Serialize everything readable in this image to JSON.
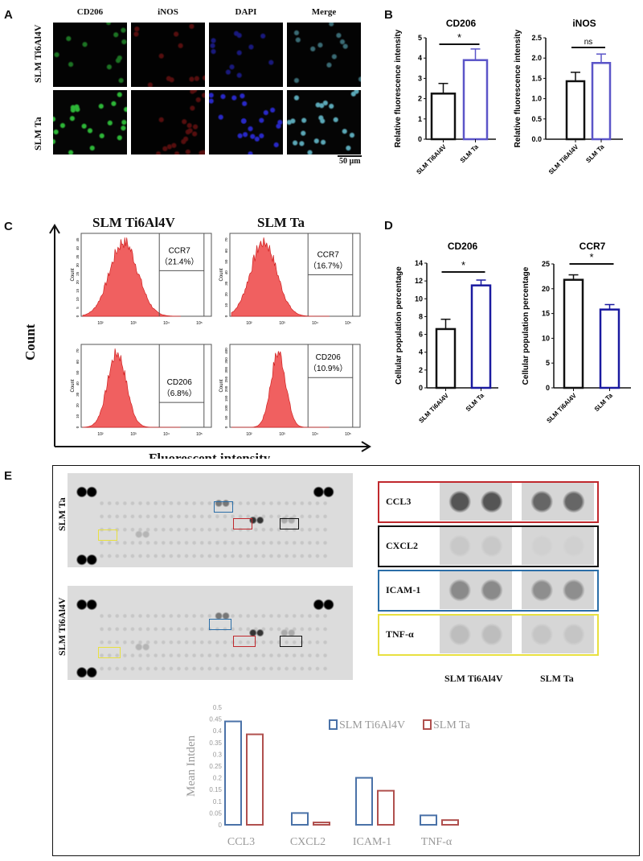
{
  "panel_labels": {
    "a": "A",
    "b": "B",
    "c": "C",
    "d": "D",
    "e": "E"
  },
  "panelA": {
    "columns": [
      "CD206",
      "iNOS",
      "DAPI",
      "Merge"
    ],
    "rows": [
      "SLM Ti6Al4V",
      "SLM Ta"
    ],
    "scale_bar": "50 µm",
    "channel_colors": {
      "CD206": "#2fbf3a",
      "iNOS": "#c02020",
      "DAPI": "#2a2ad0",
      "Merge": "#5fb0c0"
    }
  },
  "chart_data": [
    {
      "id": "B-CD206",
      "type": "bar",
      "title": "CD206",
      "ylabel": "Relative fluorescence intensity",
      "categories": [
        "SLM Ti6Al4V",
        "SLM Ta"
      ],
      "values": [
        2.25,
        3.9
      ],
      "errors": [
        0.5,
        0.55
      ],
      "ylim": [
        0,
        5
      ],
      "yticks": [
        "0",
        "1",
        "2",
        "3",
        "4",
        "5"
      ],
      "significance": "*",
      "colors": [
        "#111111",
        "#5b55c8"
      ]
    },
    {
      "id": "B-iNOS",
      "type": "bar",
      "title": "iNOS",
      "ylabel": "Relative fluorescence intensity",
      "categories": [
        "SLM Ti6Al4V",
        "SLM Ta"
      ],
      "values": [
        1.43,
        1.88
      ],
      "errors": [
        0.22,
        0.22
      ],
      "ylim": [
        0,
        2.5
      ],
      "yticks": [
        "0.0",
        "0.5",
        "1.0",
        "1.5",
        "2.0",
        "2.5"
      ],
      "significance": "ns",
      "colors": [
        "#111111",
        "#5b55c8"
      ]
    },
    {
      "id": "D-CD206",
      "type": "bar",
      "title": "CD206",
      "ylabel": "Cellular population percentage",
      "categories": [
        "SLM Ti6Al4V",
        "SLM Ta"
      ],
      "values": [
        6.6,
        11.5
      ],
      "errors": [
        1.1,
        0.6
      ],
      "ylim": [
        0,
        14
      ],
      "yticks": [
        "0",
        "2",
        "4",
        "6",
        "8",
        "10",
        "12",
        "14"
      ],
      "significance": "*",
      "colors": [
        "#111111",
        "#1a1aa0"
      ]
    },
    {
      "id": "D-CCR7",
      "type": "bar",
      "title": "CCR7",
      "ylabel": "Cellular population percentage",
      "categories": [
        "SLM Ti6Al4V",
        "SLM Ta"
      ],
      "values": [
        21.8,
        15.8
      ],
      "errors": [
        1.0,
        1.0
      ],
      "ylim": [
        0,
        25
      ],
      "yticks": [
        "0",
        "5",
        "10",
        "15",
        "20",
        "25"
      ],
      "significance": "*",
      "colors": [
        "#111111",
        "#1a1aa0"
      ]
    },
    {
      "id": "E-meanInten",
      "type": "bar",
      "ylabel": "Mean Intden",
      "categories": [
        "CCL3",
        "CXCL2",
        "ICAM-1",
        "TNF-α"
      ],
      "series": [
        {
          "name": "SLM Ti6Al4V",
          "values": [
            0.44,
            0.05,
            0.2,
            0.04
          ],
          "color": "#4a72a8"
        },
        {
          "name": "SLM Ta",
          "values": [
            0.385,
            0.01,
            0.145,
            0.02
          ],
          "color": "#b0504e"
        }
      ],
      "ylim": [
        0,
        0.5
      ],
      "yticks": [
        "0",
        "0.05",
        "0.1",
        "0.15",
        "0.2",
        "0.25",
        "0.3",
        "0.35",
        "0.4",
        "0.45",
        "0.5"
      ],
      "legend": "top-right"
    }
  ],
  "panelC": {
    "columns": [
      "SLM Ti6Al4V",
      "SLM Ta"
    ],
    "y_axis": "Count",
    "x_axis": "Fluorescent intensity",
    "count_label": "Count",
    "x_ticks": [
      "10²",
      "10³",
      "10⁴",
      "10⁵"
    ],
    "plots": [
      {
        "marker": "CCR7",
        "percent": "（21.4%）",
        "yticks": [
          "0",
          "5",
          "10",
          "15",
          "20",
          "25",
          "30",
          "35",
          "40",
          "45"
        ]
      },
      {
        "marker": "CCR7",
        "percent": "（16.7%）",
        "yticks": [
          "0",
          "10",
          "20",
          "30",
          "40",
          "50",
          "60",
          "70"
        ]
      },
      {
        "marker": "CD206",
        "percent": "（6.8%）",
        "yticks": [
          "0",
          "10",
          "20",
          "30",
          "40",
          "50",
          "60",
          "70"
        ]
      },
      {
        "marker": "CD206",
        "percent": "（10.9%）",
        "yticks": [
          "0",
          "50",
          "100",
          "150",
          "200",
          "250",
          "300",
          "350",
          "400"
        ]
      }
    ],
    "fill_color": "#f06060"
  },
  "panelE": {
    "blot_rows": [
      "SLM Ta",
      "SLM Ti6Al4V"
    ],
    "zoom_rows": [
      {
        "label": "CCL3",
        "color": "#c0282d"
      },
      {
        "label": "CXCL2",
        "color": "#111111"
      },
      {
        "label": "ICAM-1",
        "color": "#2b6ea8"
      },
      {
        "label": "TNF-α",
        "color": "#e8e040"
      }
    ],
    "zoom_columns": [
      "SLM Ti6Al4V",
      "SLM Ta"
    ]
  }
}
